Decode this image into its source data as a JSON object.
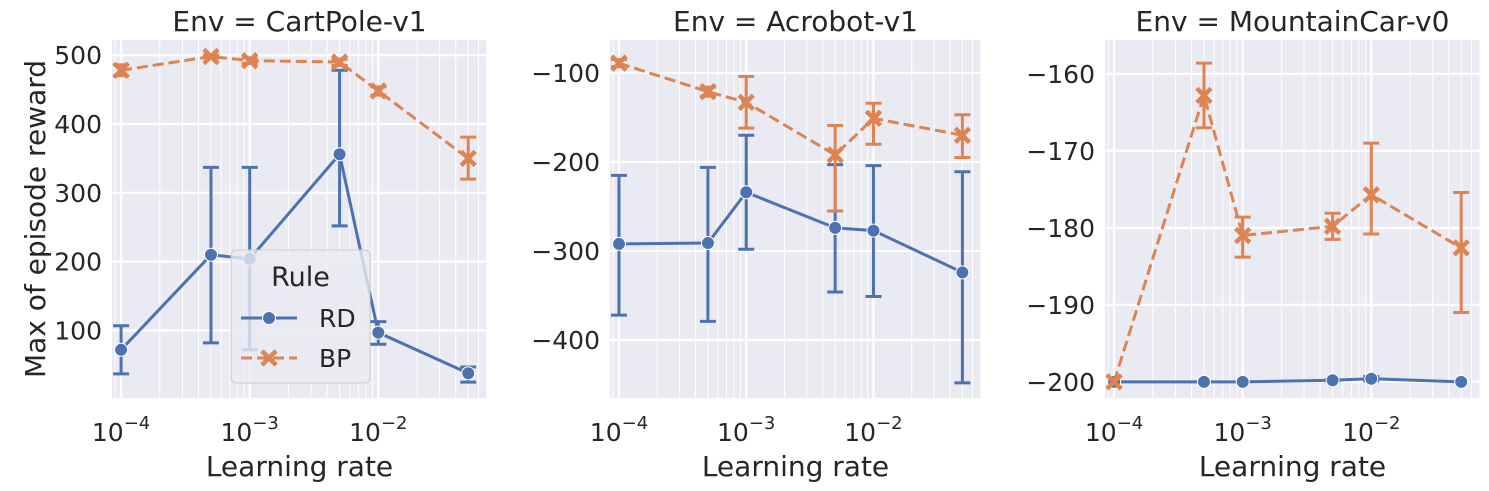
{
  "chart_data": [
    {
      "type": "line",
      "title": "Env = CartPole-v1",
      "xlabel": "Learning rate",
      "ylabel": "Max of episode reward",
      "xscale": "log",
      "xlim": [
        8.5e-05,
        0.07
      ],
      "ylim": [
        2,
        522
      ],
      "yticks": [
        100,
        200,
        300,
        400,
        500
      ],
      "yticklabels": [
        "100",
        "200",
        "300",
        "400",
        "500"
      ],
      "xticks": [
        0.0001,
        0.001,
        0.01
      ],
      "grid": true,
      "legend": {
        "title": "Rule",
        "placement": "center",
        "entries": [
          "RD",
          "BP"
        ]
      },
      "series": [
        {
          "name": "RD",
          "color": "#4c72b0",
          "marker": "circle",
          "linestyle": "solid",
          "x": [
            0.0001,
            0.0005,
            0.001,
            0.005,
            0.01,
            0.05
          ],
          "y": [
            72,
            210,
            204,
            356,
            97,
            38
          ],
          "err_low": [
            37,
            82,
            72,
            252,
            80,
            25
          ],
          "err_high": [
            107,
            337,
            337,
            478,
            113,
            47
          ]
        },
        {
          "name": "BP",
          "color": "#dd8452",
          "marker": "x",
          "linestyle": "dashed",
          "x": [
            0.0001,
            0.0005,
            0.001,
            0.005,
            0.01,
            0.05
          ],
          "y": [
            478,
            498,
            492,
            490,
            448,
            350
          ],
          "err_low": [
            470,
            496,
            488,
            485,
            442,
            320
          ],
          "err_high": [
            486,
            500,
            496,
            494,
            454,
            381
          ]
        }
      ]
    },
    {
      "type": "line",
      "title": "Env = Acrobot-v1",
      "xlabel": "Learning rate",
      "ylabel": "",
      "xscale": "log",
      "xlim": [
        8.5e-05,
        0.07
      ],
      "ylim": [
        -465,
        -63
      ],
      "yticks": [
        -400,
        -300,
        -200,
        -100
      ],
      "yticklabels": [
        "−400",
        "−300",
        "−200",
        "−100"
      ],
      "xticks": [
        0.0001,
        0.001,
        0.01
      ],
      "grid": true,
      "series": [
        {
          "name": "RD",
          "color": "#4c72b0",
          "marker": "circle",
          "linestyle": "solid",
          "x": [
            0.0001,
            0.0005,
            0.001,
            0.005,
            0.01,
            0.05
          ],
          "y": [
            -292,
            -291,
            -234,
            -274,
            -277,
            -324
          ],
          "err_low": [
            -372,
            -379,
            -298,
            -346,
            -351,
            -448
          ],
          "err_high": [
            -215,
            -206,
            -170,
            -203,
            -204,
            -211
          ]
        },
        {
          "name": "BP",
          "color": "#dd8452",
          "marker": "x",
          "linestyle": "dashed",
          "x": [
            0.0001,
            0.0005,
            0.001,
            0.005,
            0.01,
            0.05
          ],
          "y": [
            -89,
            -121,
            -133,
            -192,
            -151,
            -170
          ],
          "err_low": [
            -93,
            -126,
            -162,
            -255,
            -180,
            -195
          ],
          "err_high": [
            -85,
            -116,
            -104,
            -159,
            -134,
            -147
          ]
        }
      ]
    },
    {
      "type": "line",
      "title": "Env = MountainCar-v0",
      "xlabel": "Learning rate",
      "ylabel": "",
      "xscale": "log",
      "xlim": [
        8.5e-05,
        0.07
      ],
      "ylim": [
        -202.1,
        -155.6
      ],
      "yticks": [
        -200,
        -190,
        -180,
        -170,
        -160
      ],
      "yticklabels": [
        "−200",
        "−190",
        "−180",
        "−170",
        "−160"
      ],
      "xticks": [
        0.0001,
        0.001,
        0.01
      ],
      "grid": true,
      "series": [
        {
          "name": "RD",
          "color": "#4c72b0",
          "marker": "circle",
          "linestyle": "solid",
          "x": [
            0.0001,
            0.0005,
            0.001,
            0.005,
            0.01,
            0.05
          ],
          "y": [
            -200,
            -200,
            -200,
            -199.8,
            -199.6,
            -200
          ],
          "err_low": [
            -200,
            -200,
            -200,
            -199.9,
            -199.9,
            -200
          ],
          "err_high": [
            -200,
            -200,
            -200,
            -199.7,
            -199.3,
            -200
          ]
        },
        {
          "name": "BP",
          "color": "#dd8452",
          "marker": "x",
          "linestyle": "dashed",
          "x": [
            0.0001,
            0.0005,
            0.001,
            0.005,
            0.01,
            0.05
          ],
          "y": [
            -200,
            -162.8,
            -181,
            -179.8,
            -175.7,
            -182.6
          ],
          "err_low": [
            -200,
            -167,
            -183.8,
            -181.5,
            -180.8,
            -191
          ],
          "err_high": [
            -200,
            -158.6,
            -178.6,
            -178.1,
            -169,
            -175.4
          ]
        }
      ]
    }
  ]
}
